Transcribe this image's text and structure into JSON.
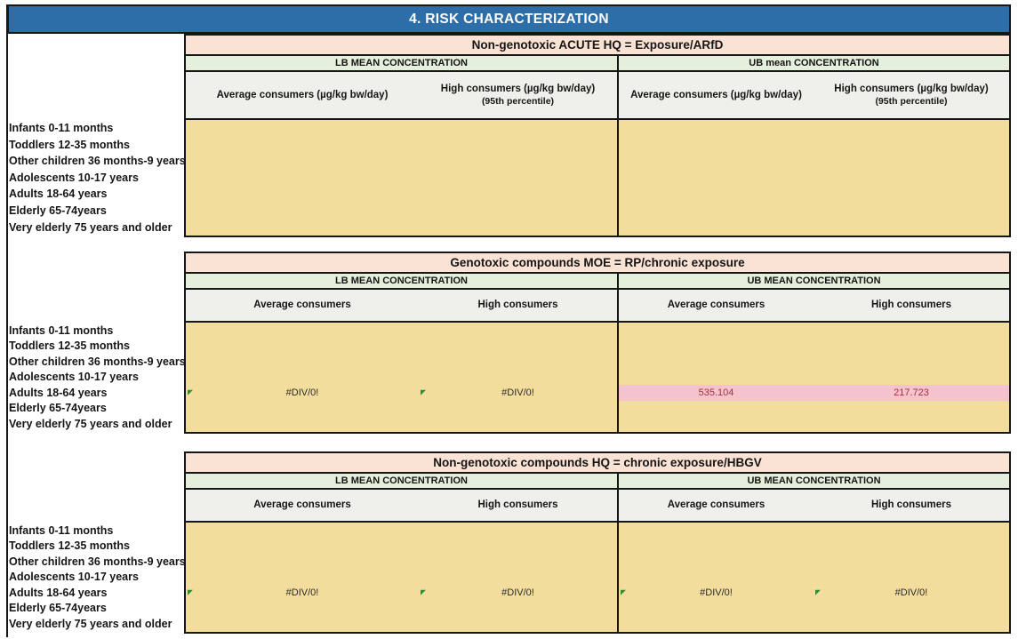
{
  "title": "4. RISK CHARACTERIZATION",
  "row_labels": [
    "Infants 0-11 months",
    "Toddlers 12-35 months",
    "Other children 36 months-9 years",
    "Adolescents 10-17 years",
    "Adults 18-64 years",
    "Elderly 65-74years",
    "Very elderly 75 years and older"
  ],
  "table1": {
    "header": "Non-genotoxic ACUTE HQ = Exposure/ARfD",
    "lb": "LB MEAN CONCENTRATION",
    "ub": "UB mean CONCENTRATION",
    "col_avg": "Average consumers (µg/kg bw/day)",
    "col_high_line1": "High consumers (µg/kg bw/day)",
    "col_high_line2": "(95th percentile)"
  },
  "table2": {
    "header": "Genotoxic compounds MOE = RP/chronic exposure",
    "lb": "LB MEAN CONCENTRATION",
    "ub": "UB MEAN CONCENTRATION",
    "col_avg": "Average consumers",
    "col_high": "High consumers",
    "values": {
      "lb_avg": "#DIV/0!",
      "lb_high": "#DIV/0!",
      "ub_avg": "535.104",
      "ub_high": "217.723"
    }
  },
  "table3": {
    "header": "Non-genotoxic compounds HQ = chronic exposure/HBGV",
    "lb": "LB MEAN CONCENTRATION",
    "ub": "UB MEAN CONCENTRATION",
    "col_avg": "Average consumers",
    "col_high": "High consumers",
    "values": {
      "lb_avg": "#DIV/0!",
      "lb_high": "#DIV/0!",
      "ub_avg": "#DIV/0!",
      "ub_high": "#DIV/0!"
    }
  },
  "colors": {
    "title_bg": "#2d6da8",
    "table_header_bg": "#fae3d4",
    "section_header_bg": "#e4f0dc",
    "column_header_bg": "#efefec",
    "data_bg": "#f3dd9d",
    "highlight_bg": "#f5c3cd",
    "highlight_text": "#a23240",
    "error_indicator": "#2e8b3a"
  }
}
